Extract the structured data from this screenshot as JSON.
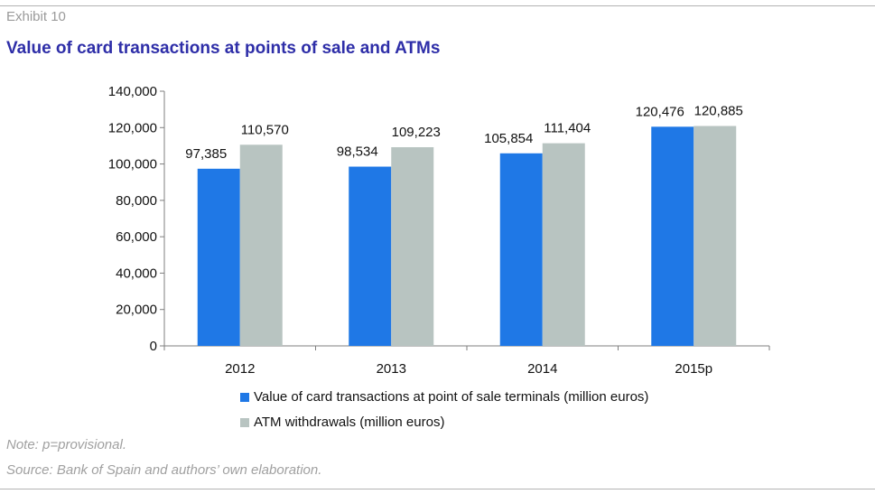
{
  "header": {
    "exhibit": "Exhibit 10",
    "title": "Value of card transactions at points of sale and ATMs"
  },
  "footer": {
    "note": "Note: p=provisional.",
    "source": "Source: Bank of Spain and authors’ own elaboration."
  },
  "colors": {
    "pos": "#1f78e6",
    "atm": "#b8c4c1",
    "title": "#2e2ea8"
  },
  "chart_data": {
    "type": "bar",
    "title": "Value of card transactions at points of sale and ATMs",
    "xlabel": "",
    "ylabel": "",
    "categories": [
      "2012",
      "2013",
      "2014",
      "2015p"
    ],
    "series": [
      {
        "name": "Value of card transactions at point of sale terminals (million euros)",
        "values": [
          97385,
          98534,
          105854,
          120476
        ],
        "labels": [
          "97,385",
          "98,534",
          "105,854",
          "120,476"
        ]
      },
      {
        "name": "ATM withdrawals (million euros)",
        "values": [
          110570,
          109223,
          111404,
          120885
        ],
        "labels": [
          "110,570",
          "109,223",
          "111,404",
          "120,885"
        ]
      }
    ],
    "ylim": [
      0,
      140000
    ],
    "yticks": [
      0,
      20000,
      40000,
      60000,
      80000,
      100000,
      120000,
      140000
    ],
    "ytick_labels": [
      "0",
      "20,000",
      "40,000",
      "60,000",
      "80,000",
      "100,000",
      "120,000",
      "140,000"
    ],
    "grid": false,
    "legend_position": "bottom"
  }
}
